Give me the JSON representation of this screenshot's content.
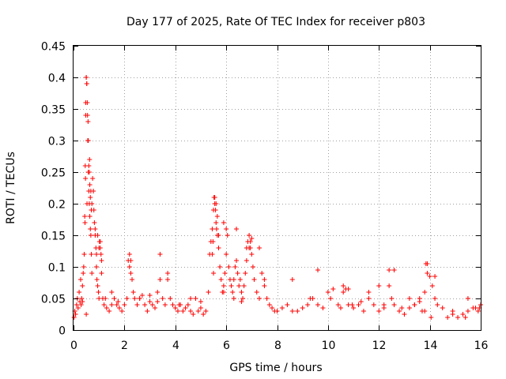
{
  "chart_data": {
    "type": "scatter",
    "title": "Day 177 of 2025, Rate Of TEC Index for receiver p803",
    "xlabel": "GPS time / hours",
    "ylabel": "ROTI / TECUs",
    "xlim": [
      0,
      16
    ],
    "ylim": [
      0,
      0.45
    ],
    "x_ticks": [
      0,
      2,
      4,
      6,
      8,
      10,
      12,
      14,
      16
    ],
    "x_tick_labels": [
      "0",
      "2",
      "4",
      "6",
      "8",
      "10",
      "12",
      "14",
      "16"
    ],
    "y_ticks": [
      0,
      0.05,
      0.1,
      0.15,
      0.2,
      0.25,
      0.3,
      0.35,
      0.4,
      0.45
    ],
    "y_tick_labels": [
      "0",
      "0.05",
      "0.1",
      "0.15",
      "0.2",
      "0.25",
      "0.3",
      "0.35",
      "0.4",
      "0.45"
    ],
    "grid": true,
    "marker": "+",
    "color": "#ff0000",
    "series": [
      {
        "name": "ROTI",
        "x": [
          0.02,
          0.05,
          0.08,
          0.12,
          0.15,
          0.18,
          0.22,
          0.25,
          0.28,
          0.32,
          0.35,
          0.38,
          0.4,
          0.42,
          0.44,
          0.46,
          0.48,
          0.5,
          0.52,
          0.54,
          0.56,
          0.58,
          0.6,
          0.62,
          0.64,
          0.66,
          0.68,
          0.7,
          0.72,
          0.75,
          0.78,
          0.8,
          0.82,
          0.85,
          0.88,
          0.9,
          0.92,
          0.95,
          0.98,
          1.0,
          1.02,
          1.05,
          1.08,
          1.1,
          1.15,
          1.2,
          1.3,
          1.4,
          1.5,
          1.6,
          1.7,
          1.8,
          1.9,
          2.0,
          2.1,
          2.15,
          2.2,
          2.25,
          2.3,
          2.35,
          2.4,
          2.5,
          2.6,
          2.7,
          2.8,
          2.9,
          3.0,
          3.1,
          3.2,
          3.3,
          3.4,
          3.5,
          3.6,
          3.7,
          3.8,
          3.9,
          4.0,
          4.1,
          4.2,
          4.3,
          4.4,
          4.5,
          4.6,
          4.7,
          4.8,
          4.9,
          5.0,
          5.1,
          5.2,
          5.3,
          5.35,
          5.4,
          5.45,
          5.5,
          5.55,
          5.6,
          5.65,
          5.7,
          5.75,
          5.8,
          5.85,
          5.9,
          5.95,
          6.0,
          6.05,
          6.1,
          6.15,
          6.2,
          6.25,
          6.3,
          6.35,
          6.4,
          6.45,
          6.5,
          6.55,
          6.6,
          6.65,
          6.7,
          6.75,
          6.8,
          6.85,
          6.9,
          6.95,
          7.0,
          7.05,
          7.1,
          7.2,
          7.3,
          7.4,
          7.5,
          7.6,
          7.7,
          7.8,
          7.9,
          8.0,
          8.2,
          8.4,
          8.6,
          8.8,
          9.0,
          9.2,
          9.4,
          9.6,
          9.8,
          10.0,
          10.2,
          10.4,
          10.5,
          10.6,
          10.7,
          10.8,
          11.0,
          11.2,
          11.4,
          11.6,
          11.8,
          12.0,
          12.2,
          12.4,
          12.5,
          12.6,
          12.8,
          13.0,
          13.2,
          13.4,
          13.6,
          13.8,
          13.9,
          14.0,
          14.1,
          14.2,
          14.3,
          14.5,
          14.7,
          14.9,
          15.1,
          15.3,
          15.5,
          15.7,
          15.9,
          16.0,
          0.5,
          0.5,
          0.52,
          0.48,
          0.55,
          0.58,
          0.6,
          0.62,
          0.64,
          0.66,
          0.7,
          0.45,
          0.47,
          0.53,
          0.57,
          0.63,
          0.68,
          0.72,
          0.85,
          0.9,
          0.95,
          1.0,
          1.05,
          1.1,
          2.2,
          2.25,
          3.4,
          3.7,
          5.5,
          5.52,
          5.55,
          5.58,
          5.6,
          5.62,
          5.65,
          5.48,
          5.45,
          5.7,
          5.9,
          6.0,
          6.4,
          6.8,
          6.9,
          6.95,
          7.0,
          7.3,
          9.6,
          10.6,
          10.8,
          11.6,
          12.0,
          12.4,
          12.6,
          13.2,
          13.6,
          13.8,
          13.85,
          13.9,
          14.2,
          15.5,
          15.95,
          0.3,
          0.35,
          1.25,
          1.5,
          1.75,
          2.6,
          3.0,
          3.3,
          4.15,
          4.6,
          5.0,
          5.9,
          6.3,
          6.6,
          7.5,
          8.6,
          9.3,
          10.1,
          10.95,
          11.3,
          12.2,
          12.9,
          13.4,
          13.7,
          14.05,
          14.9,
          15.4,
          15.8
        ],
        "y": [
          0.02,
          0.03,
          0.025,
          0.04,
          0.05,
          0.035,
          0.06,
          0.045,
          0.08,
          0.05,
          0.07,
          0.09,
          0.1,
          0.12,
          0.18,
          0.26,
          0.34,
          0.4,
          0.39,
          0.36,
          0.3,
          0.25,
          0.22,
          0.2,
          0.18,
          0.16,
          0.15,
          0.12,
          0.09,
          0.24,
          0.22,
          0.19,
          0.17,
          0.15,
          0.13,
          0.1,
          0.08,
          0.07,
          0.06,
          0.05,
          0.14,
          0.13,
          0.12,
          0.09,
          0.05,
          0.04,
          0.035,
          0.03,
          0.04,
          0.05,
          0.04,
          0.035,
          0.03,
          0.04,
          0.05,
          0.11,
          0.1,
          0.09,
          0.08,
          0.06,
          0.05,
          0.04,
          0.05,
          0.055,
          0.04,
          0.03,
          0.045,
          0.04,
          0.035,
          0.06,
          0.08,
          0.05,
          0.04,
          0.09,
          0.05,
          0.04,
          0.035,
          0.03,
          0.04,
          0.03,
          0.035,
          0.04,
          0.03,
          0.025,
          0.05,
          0.03,
          0.035,
          0.025,
          0.03,
          0.06,
          0.12,
          0.14,
          0.16,
          0.19,
          0.21,
          0.2,
          0.18,
          0.15,
          0.1,
          0.08,
          0.06,
          0.07,
          0.09,
          0.16,
          0.15,
          0.1,
          0.08,
          0.07,
          0.06,
          0.08,
          0.1,
          0.11,
          0.09,
          0.07,
          0.08,
          0.06,
          0.05,
          0.07,
          0.09,
          0.13,
          0.14,
          0.15,
          0.13,
          0.12,
          0.1,
          0.08,
          0.06,
          0.05,
          0.09,
          0.08,
          0.05,
          0.04,
          0.035,
          0.03,
          0.03,
          0.035,
          0.04,
          0.03,
          0.03,
          0.035,
          0.04,
          0.05,
          0.04,
          0.035,
          0.06,
          0.065,
          0.04,
          0.035,
          0.06,
          0.065,
          0.04,
          0.035,
          0.04,
          0.03,
          0.05,
          0.04,
          0.03,
          0.035,
          0.095,
          0.05,
          0.04,
          0.03,
          0.025,
          0.035,
          0.04,
          0.05,
          0.03,
          0.105,
          0.085,
          0.07,
          0.05,
          0.04,
          0.035,
          0.02,
          0.025,
          0.02,
          0.025,
          0.03,
          0.035,
          0.03,
          0.04,
          0.025,
          0.4,
          0.39,
          0.36,
          0.34,
          0.3,
          0.26,
          0.25,
          0.23,
          0.21,
          0.19,
          0.17,
          0.24,
          0.2,
          0.33,
          0.27,
          0.22,
          0.2,
          0.16,
          0.12,
          0.15,
          0.13,
          0.14,
          0.11,
          0.12,
          0.11,
          0.12,
          0.08,
          0.09,
          0.21,
          0.2,
          0.19,
          0.17,
          0.16,
          0.15,
          0.14,
          0.12,
          0.13,
          0.17,
          0.12,
          0.16,
          0.11,
          0.13,
          0.14,
          0.145,
          0.13,
          0.095,
          0.07,
          0.065,
          0.06,
          0.07,
          0.07,
          0.095,
          0.05,
          0.045,
          0.06,
          0.105,
          0.09,
          0.085,
          0.05,
          0.035,
          0.04,
          0.045,
          0.05,
          0.06,
          0.045,
          0.05,
          0.055,
          0.045,
          0.04,
          0.05,
          0.045,
          0.06,
          0.05,
          0.045,
          0.07,
          0.08,
          0.05,
          0.05,
          0.04,
          0.045,
          0.04,
          0.035,
          0.04,
          0.03,
          0.02,
          0.03,
          0.02,
          0.035
        ]
      }
    ]
  }
}
